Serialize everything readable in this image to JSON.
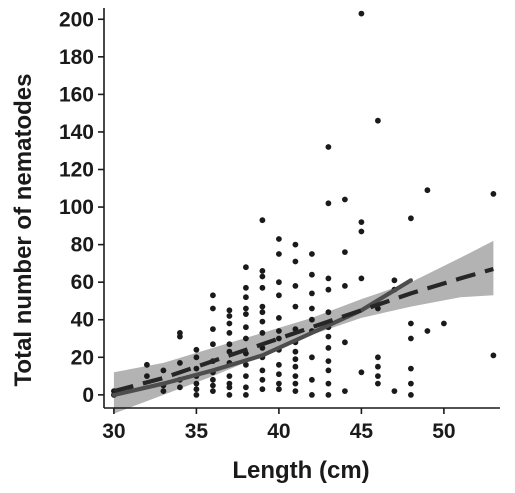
{
  "chart_data": {
    "type": "scatter",
    "xlabel": "Length (cm)",
    "ylabel": "Total number of nematodes",
    "xlim": [
      29.4,
      53.4
    ],
    "ylim": [
      -7,
      206
    ],
    "x_ticks": [
      30,
      35,
      40,
      45,
      50
    ],
    "y_ticks": [
      0,
      20,
      40,
      60,
      80,
      100,
      120,
      140,
      160,
      180,
      200
    ],
    "grid": false,
    "legend": "none",
    "colors": {
      "points": "#1a1a1a",
      "ci_band": "#b3b3b3",
      "solid_line": "#4d4d4d",
      "dashed_line": "#262626"
    },
    "points": [
      [
        30,
        0
      ],
      [
        30,
        2
      ],
      [
        31,
        3
      ],
      [
        32,
        16
      ],
      [
        32,
        10
      ],
      [
        33,
        5
      ],
      [
        33,
        2
      ],
      [
        33,
        13
      ],
      [
        34,
        4
      ],
      [
        34,
        8
      ],
      [
        34,
        17
      ],
      [
        34,
        31
      ],
      [
        34,
        33
      ],
      [
        35,
        0
      ],
      [
        35,
        3
      ],
      [
        35,
        6
      ],
      [
        35,
        10
      ],
      [
        35,
        14
      ],
      [
        35,
        20
      ],
      [
        35,
        24
      ],
      [
        36,
        2
      ],
      [
        36,
        5
      ],
      [
        36,
        8
      ],
      [
        36,
        12
      ],
      [
        36,
        18
      ],
      [
        36,
        27
      ],
      [
        36,
        35
      ],
      [
        36,
        46
      ],
      [
        36,
        53
      ],
      [
        37,
        0
      ],
      [
        37,
        4
      ],
      [
        37,
        6
      ],
      [
        37,
        10
      ],
      [
        37,
        17
      ],
      [
        37,
        23
      ],
      [
        37,
        27
      ],
      [
        37,
        33
      ],
      [
        37,
        38
      ],
      [
        37,
        42
      ],
      [
        37,
        45
      ],
      [
        38,
        0
      ],
      [
        38,
        4
      ],
      [
        38,
        10
      ],
      [
        38,
        16
      ],
      [
        38,
        22
      ],
      [
        38,
        30
      ],
      [
        38,
        36
      ],
      [
        38,
        43
      ],
      [
        38,
        46
      ],
      [
        38,
        52
      ],
      [
        38,
        57
      ],
      [
        38,
        68
      ],
      [
        39,
        3
      ],
      [
        39,
        8
      ],
      [
        39,
        13
      ],
      [
        39,
        20
      ],
      [
        39,
        25
      ],
      [
        39,
        33
      ],
      [
        39,
        39
      ],
      [
        39,
        44
      ],
      [
        39,
        47
      ],
      [
        39,
        57
      ],
      [
        39,
        63
      ],
      [
        39,
        66
      ],
      [
        39,
        93
      ],
      [
        40,
        3
      ],
      [
        40,
        6
      ],
      [
        40,
        11
      ],
      [
        40,
        16
      ],
      [
        40,
        24
      ],
      [
        40,
        30
      ],
      [
        40,
        34
      ],
      [
        40,
        41
      ],
      [
        40,
        53
      ],
      [
        40,
        60
      ],
      [
        40,
        75
      ],
      [
        40,
        83
      ],
      [
        41,
        2
      ],
      [
        41,
        6
      ],
      [
        41,
        10
      ],
      [
        41,
        15
      ],
      [
        41,
        19
      ],
      [
        41,
        23
      ],
      [
        41,
        28
      ],
      [
        41,
        35
      ],
      [
        41,
        47
      ],
      [
        41,
        58
      ],
      [
        41,
        71
      ],
      [
        41,
        80
      ],
      [
        42,
        0
      ],
      [
        42,
        8
      ],
      [
        42,
        20
      ],
      [
        42,
        34
      ],
      [
        42,
        40
      ],
      [
        42,
        46
      ],
      [
        42,
        54
      ],
      [
        42,
        64
      ],
      [
        42,
        75
      ],
      [
        43,
        0
      ],
      [
        43,
        6
      ],
      [
        43,
        13
      ],
      [
        43,
        18
      ],
      [
        43,
        25
      ],
      [
        43,
        31
      ],
      [
        43,
        36
      ],
      [
        43,
        44
      ],
      [
        43,
        56
      ],
      [
        43,
        62
      ],
      [
        43,
        102
      ],
      [
        43,
        132
      ],
      [
        44,
        2
      ],
      [
        44,
        28
      ],
      [
        44,
        58
      ],
      [
        44,
        76
      ],
      [
        44,
        104
      ],
      [
        45,
        12
      ],
      [
        45,
        62
      ],
      [
        45,
        87
      ],
      [
        45,
        92
      ],
      [
        45,
        203
      ],
      [
        46,
        6
      ],
      [
        46,
        10
      ],
      [
        46,
        15
      ],
      [
        46,
        20
      ],
      [
        46,
        46
      ],
      [
        46,
        146
      ],
      [
        47,
        2
      ],
      [
        47,
        56
      ],
      [
        47,
        61
      ],
      [
        48,
        0
      ],
      [
        48,
        6
      ],
      [
        48,
        14
      ],
      [
        48,
        30
      ],
      [
        48,
        38
      ],
      [
        48,
        94
      ],
      [
        49,
        34
      ],
      [
        49,
        109
      ],
      [
        50,
        38
      ],
      [
        53,
        21
      ],
      [
        53,
        107
      ]
    ],
    "solid_fit": {
      "x": [
        30,
        33,
        36,
        39,
        42,
        45,
        48
      ],
      "y": [
        0,
        6,
        13,
        21,
        33,
        45,
        61
      ]
    },
    "dashed_fit": {
      "x": [
        30,
        33,
        36,
        39,
        42,
        45,
        48,
        51,
        53
      ],
      "y": [
        2,
        9,
        18,
        27,
        36,
        45,
        54,
        62,
        67
      ]
    },
    "ci_band": {
      "x": [
        30,
        33,
        36,
        39,
        42,
        45,
        48,
        51,
        53
      ],
      "lower": [
        -10,
        0,
        10,
        21,
        32,
        41,
        47,
        52,
        53
      ],
      "upper": [
        12,
        17,
        25,
        33,
        41,
        51,
        60,
        73,
        82
      ]
    }
  }
}
